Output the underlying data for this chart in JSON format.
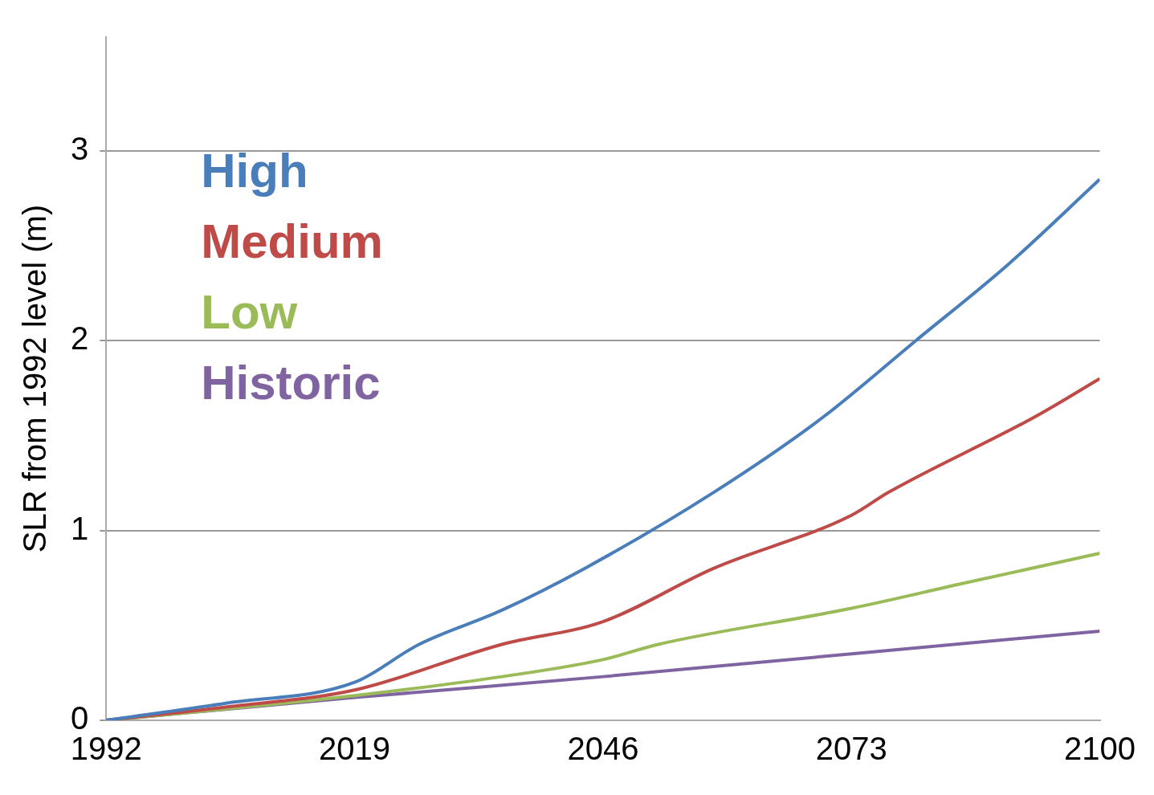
{
  "chart_data": {
    "type": "line",
    "ylabel": "SLR from 1992 level (m)",
    "xlim": [
      1992,
      2100
    ],
    "xticks": [
      1992,
      2019,
      2046,
      2073,
      2100
    ],
    "ylim": [
      0,
      3.6
    ],
    "yticks": [
      0,
      1,
      2,
      3
    ],
    "grid": "y",
    "legend": "top left",
    "series": [
      {
        "name": "High",
        "color": "#4a7ebb",
        "x": [
          1992,
          2005,
          2019,
          2026,
          2035,
          2044,
          2058,
          2070,
          2080,
          2090,
          2100
        ],
        "values": [
          0,
          0.09,
          0.2,
          0.4,
          0.58,
          0.8,
          1.2,
          1.6,
          2.0,
          2.4,
          2.85
        ]
      },
      {
        "name": "Medium",
        "color": "#be4b48",
        "x": [
          1992,
          2005,
          2019,
          2035,
          2046,
          2058,
          2073,
          2077,
          2093,
          2100
        ],
        "values": [
          0,
          0.07,
          0.16,
          0.4,
          0.52,
          0.8,
          1.08,
          1.2,
          1.6,
          1.8
        ]
      },
      {
        "name": "Low",
        "color": "#9bbb59",
        "x": [
          1992,
          2005,
          2019,
          2035,
          2046,
          2052,
          2073,
          2085,
          2100
        ],
        "values": [
          0,
          0.06,
          0.13,
          0.23,
          0.32,
          0.4,
          0.59,
          0.72,
          0.88
        ]
      },
      {
        "name": "Historic",
        "color": "#8064a2",
        "x": [
          1992,
          2019,
          2046,
          2073,
          2100
        ],
        "values": [
          0,
          0.12,
          0.23,
          0.35,
          0.47
        ]
      }
    ]
  }
}
